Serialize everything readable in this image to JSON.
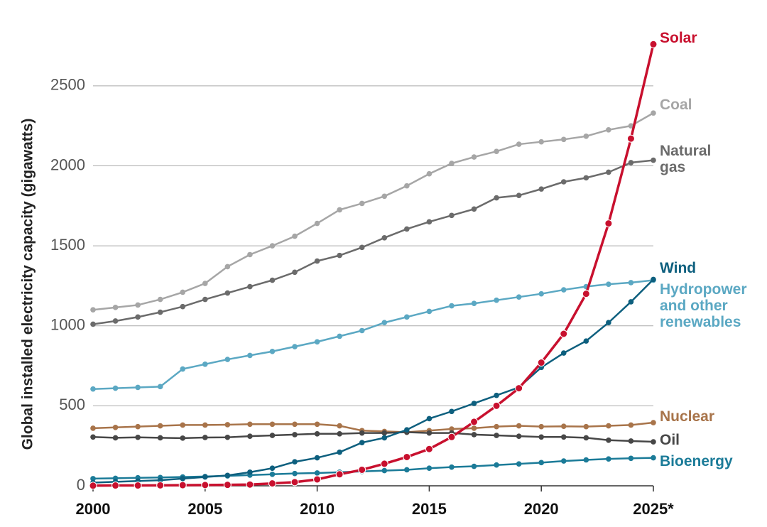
{
  "chart_data": {
    "type": "line",
    "y_label": "Global installed electricity capacity (gigawatts)",
    "x": [
      2000,
      2001,
      2002,
      2003,
      2004,
      2005,
      2006,
      2007,
      2008,
      2009,
      2010,
      2011,
      2012,
      2013,
      2014,
      2015,
      2016,
      2017,
      2018,
      2019,
      2020,
      2021,
      2022,
      2023,
      2024,
      2025
    ],
    "xlim": [
      2000,
      2025
    ],
    "xticks": [
      2000,
      2005,
      2010,
      2015,
      2020,
      {
        "value": 2025,
        "label": "2025*"
      }
    ],
    "ylim": [
      0,
      2850
    ],
    "yticks": [
      0,
      500,
      1000,
      1500,
      2000,
      2500
    ],
    "grid": true,
    "series": [
      {
        "name": "Coal",
        "color": "#a6a6a6",
        "values": [
          1100,
          1115,
          1130,
          1165,
          1210,
          1265,
          1370,
          1445,
          1500,
          1560,
          1640,
          1725,
          1765,
          1810,
          1875,
          1950,
          2015,
          2055,
          2090,
          2135,
          2150,
          2165,
          2185,
          2225,
          2250,
          2330
        ]
      },
      {
        "name": "Natural gas",
        "color": "#6b6b6b",
        "values": [
          1010,
          1030,
          1055,
          1085,
          1120,
          1165,
          1205,
          1245,
          1285,
          1335,
          1405,
          1440,
          1490,
          1550,
          1605,
          1650,
          1690,
          1730,
          1800,
          1815,
          1855,
          1900,
          1925,
          1960,
          2020,
          2035
        ]
      },
      {
        "name": "Hydropower and other renewables",
        "color": "#5ba8c3",
        "values": [
          605,
          610,
          615,
          620,
          730,
          760,
          790,
          815,
          840,
          870,
          900,
          935,
          970,
          1020,
          1055,
          1090,
          1125,
          1140,
          1160,
          1180,
          1200,
          1225,
          1245,
          1260,
          1270,
          1285
        ]
      },
      {
        "name": "Nuclear",
        "color": "#a8744a",
        "values": [
          360,
          365,
          370,
          375,
          380,
          380,
          382,
          385,
          385,
          385,
          385,
          375,
          345,
          340,
          335,
          345,
          355,
          360,
          370,
          375,
          370,
          372,
          370,
          375,
          380,
          395
        ]
      },
      {
        "name": "Oil",
        "color": "#474747",
        "values": [
          305,
          300,
          303,
          300,
          298,
          302,
          303,
          310,
          315,
          320,
          325,
          325,
          330,
          330,
          335,
          330,
          330,
          320,
          315,
          310,
          305,
          305,
          300,
          285,
          280,
          275
        ]
      },
      {
        "name": "Bioenergy",
        "color": "#1b7b98",
        "values": [
          45,
          47,
          50,
          52,
          55,
          58,
          62,
          67,
          72,
          77,
          80,
          85,
          90,
          95,
          100,
          110,
          117,
          122,
          130,
          137,
          145,
          155,
          162,
          168,
          172,
          175
        ]
      },
      {
        "name": "Wind",
        "color": "#0d5f7e",
        "values": [
          20,
          25,
          30,
          35,
          45,
          55,
          65,
          85,
          110,
          150,
          175,
          210,
          270,
          300,
          350,
          420,
          465,
          515,
          565,
          615,
          740,
          830,
          905,
          1020,
          1150,
          1290
        ]
      },
      {
        "name": "Solar",
        "color": "#c8102e",
        "values": [
          1,
          2,
          2,
          3,
          4,
          5,
          6,
          8,
          15,
          23,
          40,
          72,
          100,
          138,
          180,
          230,
          305,
          400,
          500,
          610,
          770,
          950,
          1200,
          1640,
          2170,
          2760
        ]
      }
    ]
  }
}
